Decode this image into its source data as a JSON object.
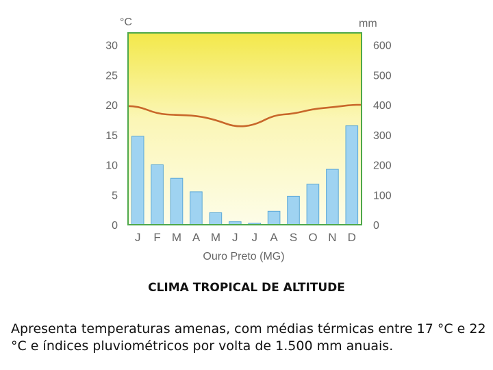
{
  "chart_data": {
    "type": "bar",
    "categories": [
      "J",
      "F",
      "M",
      "A",
      "M",
      "J",
      "J",
      "A",
      "S",
      "O",
      "N",
      "D"
    ],
    "series": [
      {
        "kind": "bar",
        "axis": "right",
        "values": [
          295,
          200,
          155,
          110,
          40,
          10,
          5,
          45,
          95,
          135,
          185,
          330
        ]
      },
      {
        "kind": "line",
        "axis": "left",
        "values": [
          19.8,
          18.5,
          18.3,
          18.2,
          17.5,
          16.3,
          16.6,
          18.3,
          18.5,
          19.3,
          19.6,
          20.0
        ]
      }
    ],
    "left_axis": {
      "unit": "°C",
      "ticks": [
        0,
        5,
        10,
        15,
        20,
        25,
        30
      ],
      "ylim": [
        0,
        32
      ]
    },
    "right_axis": {
      "unit": "mm",
      "ticks": [
        0,
        100,
        200,
        300,
        400,
        500,
        600
      ],
      "ylim": [
        0,
        640
      ]
    },
    "xlabel": "Ouro Preto (MG)",
    "grid": false,
    "colors": {
      "bar_fill": "#9fd3f1",
      "bar_stroke": "#5aa8d8",
      "line": "#c8672a",
      "frame": "#4ea84a",
      "bg_top": "#f3e84a",
      "bg_bottom": "#fdfde8",
      "tick_text": "#666666"
    }
  },
  "caption": {
    "title": "CLIMA TROPICAL DE ALTITUDE",
    "text": "Apresenta temperaturas amenas, com médias térmicas entre 17 °C e 22 °C e índices pluviométricos por volta de 1.500 mm anuais."
  }
}
